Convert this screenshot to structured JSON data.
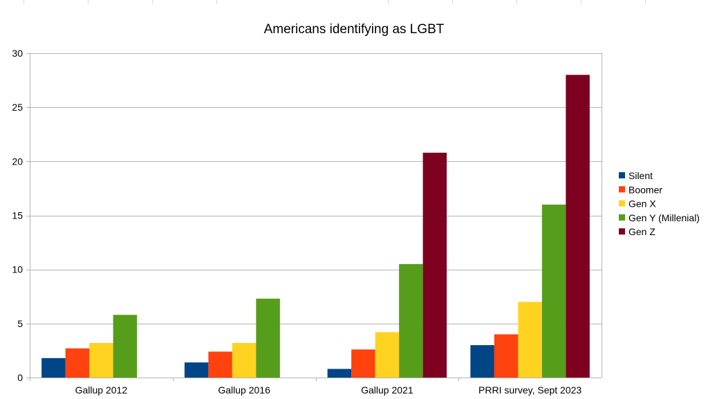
{
  "chart_data": {
    "type": "bar",
    "title": "Americans identifying as LGBT",
    "xlabel": "",
    "ylabel": "",
    "ylim": [
      0,
      30
    ],
    "yticks": [
      0,
      5,
      10,
      15,
      20,
      25,
      30
    ],
    "grid": true,
    "legend_position": "right",
    "categories": [
      "Gallup 2012",
      "Gallup 2016",
      "Gallup 2021",
      "PRRI survey, Sept 2023"
    ],
    "series": [
      {
        "name": "Silent",
        "color": "#004586",
        "values": [
          1.8,
          1.4,
          0.8,
          3.0
        ]
      },
      {
        "name": "Boomer",
        "color": "#ff420e",
        "values": [
          2.7,
          2.4,
          2.6,
          4.0
        ]
      },
      {
        "name": "Gen X",
        "color": "#ffd320",
        "values": [
          3.2,
          3.2,
          4.2,
          7.0
        ]
      },
      {
        "name": "Gen Y (Millenial)",
        "color": "#579d1c",
        "values": [
          5.8,
          7.3,
          10.5,
          16.0
        ]
      },
      {
        "name": "Gen Z",
        "color": "#7e0021",
        "values": [
          null,
          null,
          20.8,
          28.0
        ]
      }
    ]
  }
}
